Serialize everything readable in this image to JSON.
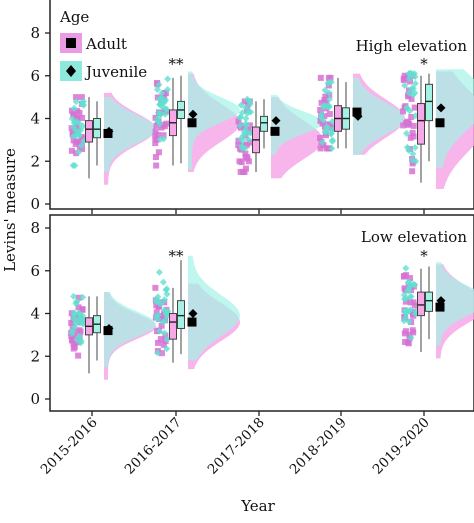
{
  "chart_data": {
    "type": "raincloud",
    "xlabel": "Year",
    "ylabel": "Levins' measure",
    "categories": [
      "2015-2016",
      "2016-2017",
      "2017-2018",
      "2018-2019",
      "2019-2020"
    ],
    "ylim": [
      0,
      8
    ],
    "yticks": [
      0,
      2,
      4,
      6,
      8
    ],
    "grid": false,
    "legend": {
      "title": "Age",
      "placement": "top-left",
      "entries": [
        {
          "name": "Adult",
          "marker": "square",
          "color": "#e07ad9"
        },
        {
          "name": "Juvenile",
          "marker": "diamond",
          "color": "#5de3d2"
        }
      ]
    },
    "panels": [
      {
        "label": "High elevation",
        "series": [
          {
            "name": "Adult",
            "values": [
              {
                "x": "2015-2016",
                "min": 1.2,
                "q1": 2.9,
                "median": 3.5,
                "q3": 3.9,
                "max": 5.0,
                "mean": 3.3
              },
              {
                "x": "2016-2017",
                "min": 1.8,
                "q1": 3.2,
                "median": 3.8,
                "q3": 4.4,
                "max": 5.9,
                "mean": 3.8
              },
              {
                "x": "2017-2018",
                "min": 1.5,
                "q1": 2.4,
                "median": 3.0,
                "q3": 3.6,
                "max": 4.8,
                "mean": 3.4
              },
              {
                "x": "2018-2019",
                "min": 2.6,
                "q1": 3.4,
                "median": 4.0,
                "q3": 4.6,
                "max": 5.9,
                "mean": 4.3
              },
              {
                "x": "2019-2020",
                "min": 1.0,
                "q1": 2.8,
                "median": 3.9,
                "q3": 4.7,
                "max": 6.0,
                "mean": 3.8
              }
            ]
          },
          {
            "name": "Juvenile",
            "values": [
              {
                "x": "2015-2016",
                "min": 1.8,
                "q1": 3.1,
                "median": 3.5,
                "q3": 4.0,
                "max": 4.8,
                "mean": 3.4
              },
              {
                "x": "2016-2017",
                "min": 1.9,
                "q1": 4.0,
                "median": 4.4,
                "q3": 4.8,
                "max": 6.0,
                "mean": 4.2
              },
              {
                "x": "2017-2018",
                "min": 2.6,
                "q1": 3.4,
                "median": 3.8,
                "q3": 4.1,
                "max": 4.9,
                "mean": 3.9
              },
              {
                "x": "2018-2019",
                "min": 2.6,
                "q1": 3.5,
                "median": 4.0,
                "q3": 4.5,
                "max": 5.7,
                "mean": 4.1
              },
              {
                "x": "2019-2020",
                "min": 2.0,
                "q1": 3.9,
                "median": 4.8,
                "q3": 5.6,
                "max": 6.1,
                "mean": 4.5
              }
            ]
          }
        ],
        "annotations": [
          {
            "x": "2016-2017",
            "text": "**"
          },
          {
            "x": "2019-2020",
            "text": "*"
          }
        ]
      },
      {
        "label": "Low elevation",
        "series": [
          {
            "name": "Adult",
            "values": [
              {
                "x": "2015-2016",
                "min": 1.2,
                "q1": 3.0,
                "median": 3.4,
                "q3": 3.8,
                "max": 4.8,
                "mean": 3.2
              },
              {
                "x": "2016-2017",
                "min": 1.7,
                "q1": 2.8,
                "median": 3.6,
                "q3": 4.0,
                "max": 5.2,
                "mean": 3.6
              },
              {
                "x": "2019-2020",
                "min": 2.2,
                "q1": 3.9,
                "median": 4.4,
                "q3": 5.0,
                "max": 6.1,
                "mean": 4.3
              }
            ]
          },
          {
            "name": "Juvenile",
            "values": [
              {
                "x": "2015-2016",
                "min": 1.8,
                "q1": 3.1,
                "median": 3.5,
                "q3": 3.9,
                "max": 4.8,
                "mean": 3.3
              },
              {
                "x": "2016-2017",
                "min": 2.1,
                "q1": 3.3,
                "median": 3.9,
                "q3": 4.6,
                "max": 6.5,
                "mean": 4.0
              },
              {
                "x": "2019-2020",
                "min": 2.8,
                "q1": 4.1,
                "median": 4.6,
                "q3": 5.0,
                "max": 6.2,
                "mean": 4.6
              }
            ]
          }
        ],
        "annotations": [
          {
            "x": "2016-2017",
            "text": "**"
          },
          {
            "x": "2019-2020",
            "text": "*"
          }
        ]
      }
    ]
  },
  "colors": {
    "adult_fill": "#f6a8e8",
    "adult_point": "#d672d4",
    "juvenile_fill": "#a4f2e6",
    "juvenile_point": "#5fe0cf",
    "overlap_fill": "#a3cbe6",
    "axis": "#222222"
  }
}
